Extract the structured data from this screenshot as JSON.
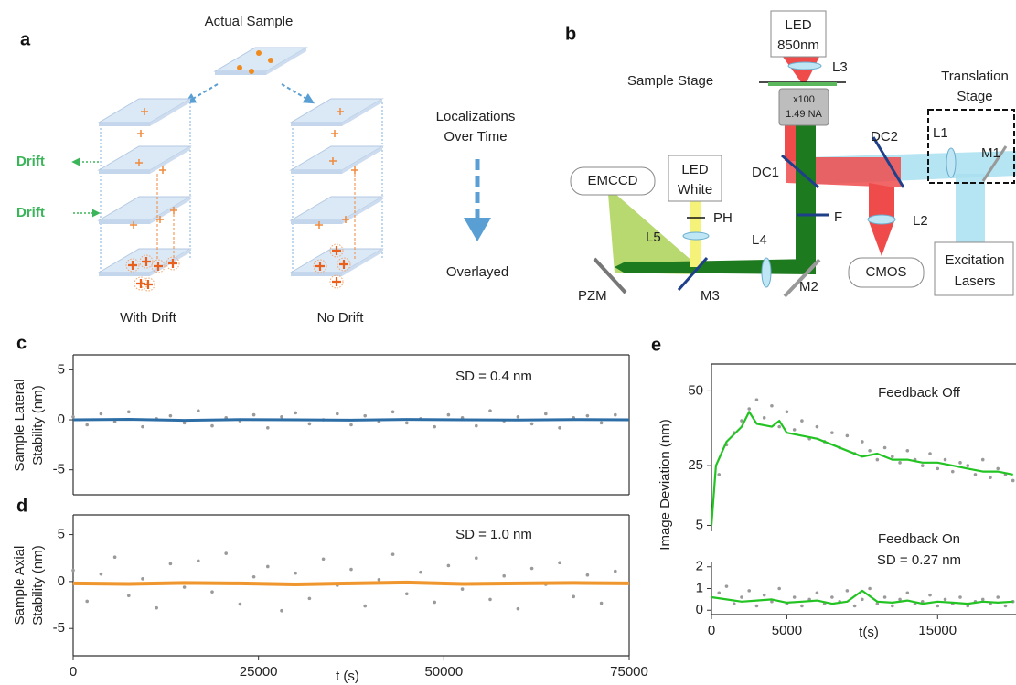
{
  "panel_a": {
    "label": "a",
    "title": "Actual Sample",
    "drift_labels": [
      "Drift",
      "Drift"
    ],
    "middle": [
      "Localizations",
      "Over Time"
    ],
    "overlay": "Overlayed",
    "stacks": [
      "With Drift",
      "No Drift"
    ]
  },
  "panel_b": {
    "label": "b",
    "led_ir": [
      "LED",
      "850nm"
    ],
    "l3": "L3",
    "sample_stage": "Sample Stage",
    "objective": [
      "x100",
      "1.49 NA"
    ],
    "translation_stage": [
      "Translation",
      "Stage"
    ],
    "dc2": "DC2",
    "l1": "L1",
    "m1": "M1",
    "emccd": "EMCCD",
    "led_white": [
      "LED",
      "White"
    ],
    "dc1": "DC1",
    "ph": "PH",
    "f": "F",
    "l5": "L5",
    "l4": "L4",
    "l2": "L2",
    "cmos": "CMOS",
    "lasers": [
      "Excitation",
      "Lasers"
    ],
    "pzm": "PZM",
    "m3": "M3",
    "m2": "M2"
  },
  "chart_data": [
    {
      "type": "scatter",
      "label": "c",
      "ylabel": [
        "Sample Lateral",
        "Stability (nm)"
      ],
      "annotations": [
        "SD = 0.4 nm"
      ],
      "xlim": [
        0,
        75000
      ],
      "ylim": [
        -7.5,
        6.5
      ],
      "yticks": [
        -5,
        0,
        5
      ],
      "series": [
        {
          "type": "scatter",
          "color": "#9a9a9a",
          "x": [
            0,
            1875,
            3750,
            5625,
            7500,
            9375,
            11250,
            13125,
            15000,
            16875,
            18750,
            20625,
            22500,
            24375,
            26250,
            28125,
            30000,
            31875,
            33750,
            35625,
            37500,
            39375,
            41250,
            43125,
            45000,
            46875,
            48750,
            50625,
            52500,
            54375,
            56250,
            58125,
            60000,
            61875,
            63750,
            65625,
            67500,
            69375,
            71250,
            73125
          ],
          "values": [
            0.3,
            -0.5,
            0.6,
            -0.2,
            0.8,
            -0.7,
            0.1,
            0.4,
            -0.3,
            0.9,
            -0.6,
            0.2,
            -0.1,
            0.5,
            -0.8,
            0.3,
            0.7,
            -0.4,
            0.0,
            0.6,
            -0.5,
            0.4,
            -0.2,
            0.8,
            -0.3,
            0.1,
            -0.7,
            0.5,
            0.2,
            -0.6,
            0.9,
            -0.1,
            0.3,
            -0.4,
            0.6,
            -0.8,
            0.2,
            0.4,
            -0.3,
            0.5
          ]
        },
        {
          "type": "line",
          "color": "#2e6ea6",
          "x": [
            0,
            7500,
            15000,
            22500,
            30000,
            37500,
            45000,
            52500,
            60000,
            67500,
            75000
          ],
          "values": [
            0,
            0.05,
            -0.05,
            0.02,
            0,
            -0.03,
            0.04,
            0,
            -0.02,
            0.03,
            0
          ]
        }
      ]
    },
    {
      "type": "scatter",
      "label": "d",
      "ylabel": [
        "Sample Axial",
        "Stability (nm)"
      ],
      "annotations": [
        "SD = 1.0 nm"
      ],
      "xlabel": "t (s)",
      "xlim": [
        0,
        75000
      ],
      "ylim": [
        -7.9,
        7.1
      ],
      "yticks": [
        -5,
        0,
        5
      ],
      "xticks": [
        0,
        25000,
        50000,
        75000
      ],
      "series": [
        {
          "type": "scatter",
          "color": "#9a9a9a",
          "x": [
            0,
            1875,
            3750,
            5625,
            7500,
            9375,
            11250,
            13125,
            15000,
            16875,
            18750,
            20625,
            22500,
            24375,
            26250,
            28125,
            30000,
            31875,
            33750,
            35625,
            37500,
            39375,
            41250,
            43125,
            45000,
            46875,
            48750,
            50625,
            52500,
            54375,
            56250,
            58125,
            60000,
            61875,
            63750,
            65625,
            67500,
            69375,
            71250,
            73125
          ],
          "values": [
            1.2,
            -2.1,
            0.8,
            2.6,
            -1.5,
            0.3,
            -2.8,
            1.9,
            -0.6,
            2.2,
            -1.1,
            3.0,
            -2.4,
            0.5,
            1.6,
            -3.1,
            0.9,
            -1.8,
            2.4,
            -0.4,
            1.3,
            -2.6,
            0.2,
            2.9,
            -1.3,
            1.0,
            -2.2,
            1.7,
            -0.8,
            2.5,
            -1.9,
            0.6,
            -2.9,
            1.4,
            -0.3,
            2.0,
            -1.6,
            0.7,
            -2.3,
            1.1
          ]
        },
        {
          "type": "line",
          "color": "#f0962e",
          "x": [
            0,
            7500,
            15000,
            22500,
            30000,
            37500,
            45000,
            52500,
            60000,
            67500,
            75000
          ],
          "values": [
            -0.2,
            -0.25,
            -0.15,
            -0.2,
            -0.3,
            -0.2,
            -0.1,
            -0.25,
            -0.2,
            -0.15,
            -0.2
          ]
        }
      ]
    },
    {
      "type": "scatter",
      "label": "e",
      "ylabel": [
        "Image Deviation (nm)"
      ],
      "annotations": [
        "Feedback Off"
      ],
      "xlim": [
        0,
        20200
      ],
      "ylim": [
        3,
        59
      ],
      "yticks": [
        5,
        25,
        50
      ],
      "series": [
        {
          "type": "scatter",
          "color": "#9a9a9a",
          "x": [
            500,
            1000,
            1500,
            2000,
            2500,
            3000,
            3500,
            4000,
            4500,
            5000,
            5500,
            6000,
            6500,
            7000,
            7500,
            8000,
            8500,
            9000,
            9500,
            10000,
            10500,
            11000,
            11500,
            12000,
            12500,
            13000,
            13500,
            14000,
            14500,
            15000,
            15500,
            16000,
            16500,
            17000,
            17500,
            18000,
            18500,
            19000,
            19500,
            20000
          ],
          "values": [
            22,
            32,
            36,
            40,
            44,
            47,
            41,
            45,
            38,
            43,
            37,
            40,
            34,
            38,
            33,
            36,
            31,
            35,
            29,
            33,
            30,
            27,
            31,
            28,
            26,
            30,
            27,
            25,
            29,
            24,
            27,
            23,
            26,
            25,
            22,
            27,
            21,
            24,
            22,
            20
          ]
        },
        {
          "type": "line",
          "color": "#22c322",
          "x": [
            0,
            300,
            1000,
            2000,
            2500,
            3000,
            4000,
            4500,
            5000,
            6000,
            7000,
            8000,
            9000,
            10000,
            11000,
            12000,
            13000,
            14000,
            15000,
            16000,
            17000,
            18000,
            19000,
            20000
          ],
          "values": [
            5,
            25,
            33,
            38,
            43,
            39,
            38,
            40,
            36,
            35,
            34,
            32,
            30,
            28,
            29,
            27,
            27,
            26,
            26,
            25,
            24,
            23,
            23,
            22
          ]
        }
      ]
    },
    {
      "type": "scatter",
      "annotations": [
        "Feedback On",
        "SD = 0.27 nm"
      ],
      "xlabel": "t(s)",
      "xlim": [
        0,
        20200
      ],
      "ylim": [
        -0.2,
        2.2
      ],
      "yticks": [
        0,
        1,
        2
      ],
      "xticks": [
        0,
        5000,
        15000
      ],
      "series": [
        {
          "type": "scatter",
          "color": "#9a9a9a",
          "x": [
            500,
            1000,
            1500,
            2000,
            2500,
            3000,
            3500,
            4000,
            4500,
            5000,
            5500,
            6000,
            6500,
            7000,
            7500,
            8000,
            8500,
            9000,
            9500,
            10000,
            10500,
            11000,
            11500,
            12000,
            12500,
            13000,
            13500,
            14000,
            14500,
            15000,
            15500,
            16000,
            16500,
            17000,
            17500,
            18000,
            18500,
            19000,
            19500,
            20000
          ],
          "values": [
            0.8,
            1.1,
            0.3,
            0.6,
            0.9,
            0.2,
            0.7,
            0.4,
            1.0,
            0.3,
            0.6,
            0.2,
            0.5,
            0.8,
            0.3,
            0.6,
            0.4,
            0.9,
            0.2,
            0.5,
            1.0,
            0.3,
            0.6,
            0.2,
            0.5,
            0.8,
            0.3,
            0.4,
            0.7,
            0.2,
            0.5,
            0.3,
            0.6,
            0.2,
            0.4,
            0.5,
            0.3,
            0.6,
            0.2,
            0.4
          ]
        },
        {
          "type": "line",
          "color": "#22c322",
          "x": [
            0,
            1000,
            2000,
            3000,
            4000,
            5000,
            6000,
            7000,
            8000,
            9000,
            10000,
            11000,
            12000,
            13000,
            14000,
            15000,
            16000,
            17000,
            18000,
            19000,
            20000
          ],
          "values": [
            0.6,
            0.5,
            0.4,
            0.45,
            0.5,
            0.35,
            0.4,
            0.45,
            0.3,
            0.4,
            0.9,
            0.4,
            0.35,
            0.45,
            0.3,
            0.4,
            0.35,
            0.3,
            0.4,
            0.35,
            0.4
          ]
        }
      ]
    }
  ]
}
